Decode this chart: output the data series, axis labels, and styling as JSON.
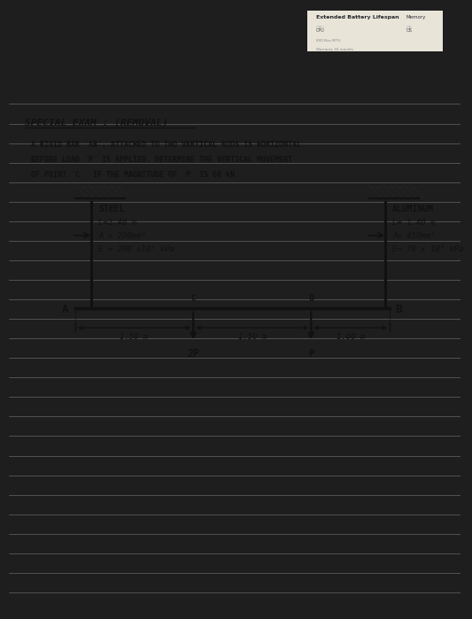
{
  "title": "SPECIAL EXAM : (REMOVAL)",
  "title_underline": true,
  "problem_line1": "A RIGID BAR ´AB´, ATTACHED TO TWO VERTICAL RODS IS HORIZONTAL",
  "problem_line2": "BEFORE LOAD ´P´ IS APPLIED. DETERMINE THE VERTICAL MOVEMENT",
  "problem_line3": "OF POINT ´C´  IF THE MAGNITUDE OF  P  IS 60 kN.",
  "steel_label": "STEEL",
  "steel_L": "L=2.40 m",
  "steel_A": "A = 200mm²",
  "steel_E": "E = 200 x10⁶ kPa",
  "alum_label": "ALUMINUM",
  "alum_L": "L= 1.40 m",
  "alum_A": "A= 450mm²",
  "alum_E": "E= 70 x 10⁶ kPa",
  "dim_AC": "1.50 m",
  "dim_CD": "1.50 m",
  "dim_DB": "1.00 m",
  "load_C": "2P",
  "load_D": "P",
  "point_A": "A",
  "point_B": "B",
  "point_C": "C",
  "point_D": "D",
  "bg_dark": "#1e1e1e",
  "bg_paper": "#d0ccc0",
  "line_color": "#111111",
  "text_color": "#111111",
  "hatch_color": "#222222",
  "ruled_line_color": "#b8b4aa",
  "monitor_text1": "Extended Battery Lifespan",
  "monitor_text2": "Memory",
  "monitor_text3": "CPU",
  "monitor_text4": "OS"
}
